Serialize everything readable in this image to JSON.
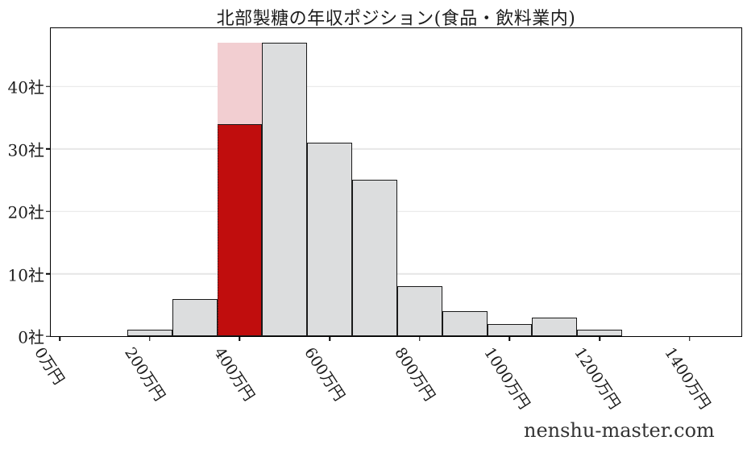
{
  "chart_data": {
    "type": "bar",
    "subtype": "histogram",
    "title": "北部製糖の年収ポジション(食品・飲料業内)",
    "xlabel": "",
    "ylabel": "",
    "x_unit": "万円",
    "y_unit": "社",
    "xlim": [
      -20,
      1515
    ],
    "ylim": [
      0,
      49.35
    ],
    "grid": "horizontal",
    "legend": "none",
    "x_ticks": [
      {
        "value": 0,
        "label": "0万円"
      },
      {
        "value": 200,
        "label": "200万円"
      },
      {
        "value": 400,
        "label": "400万円"
      },
      {
        "value": 600,
        "label": "600万円"
      },
      {
        "value": 800,
        "label": "800万円"
      },
      {
        "value": 1000,
        "label": "1000万円"
      },
      {
        "value": 1200,
        "label": "1200万円"
      },
      {
        "value": 1400,
        "label": "1400万円"
      }
    ],
    "y_ticks": [
      {
        "value": 0,
        "label": "0社"
      },
      {
        "value": 10,
        "label": "10社"
      },
      {
        "value": 20,
        "label": "20社"
      },
      {
        "value": 30,
        "label": "30社"
      },
      {
        "value": 40,
        "label": "40社"
      }
    ],
    "bars": [
      {
        "x0": 150,
        "x1": 250,
        "value": 1,
        "style": "default"
      },
      {
        "x0": 250,
        "x1": 350,
        "value": 6,
        "style": "default"
      },
      {
        "x0": 350,
        "x1": 450,
        "value": 47,
        "style": "highlight-bg"
      },
      {
        "x0": 350,
        "x1": 450,
        "value": 34,
        "style": "highlight"
      },
      {
        "x0": 450,
        "x1": 550,
        "value": 47,
        "style": "default"
      },
      {
        "x0": 550,
        "x1": 650,
        "value": 31,
        "style": "default"
      },
      {
        "x0": 650,
        "x1": 750,
        "value": 25,
        "style": "default"
      },
      {
        "x0": 750,
        "x1": 850,
        "value": 8,
        "style": "default"
      },
      {
        "x0": 850,
        "x1": 950,
        "value": 4,
        "style": "default"
      },
      {
        "x0": 950,
        "x1": 1050,
        "value": 2,
        "style": "default"
      },
      {
        "x0": 1050,
        "x1": 1150,
        "value": 3,
        "style": "default"
      },
      {
        "x0": 1150,
        "x1": 1250,
        "value": 1,
        "style": "default"
      }
    ],
    "highlighted_bin": {
      "range_label": "350万円〜450万円",
      "company_value": 34,
      "bin_background_value": 47
    },
    "colors": {
      "default_fill": "#dcddde",
      "edge": "#1a1a1a",
      "highlight_fill": "#c00d0d",
      "highlight_bg_fill": "#f2ced1",
      "grid": "#e6e6e6",
      "spine": "#000000",
      "text": "#1c1c1c",
      "watermark": "#333333"
    },
    "watermark": "nenshu-master.com"
  }
}
